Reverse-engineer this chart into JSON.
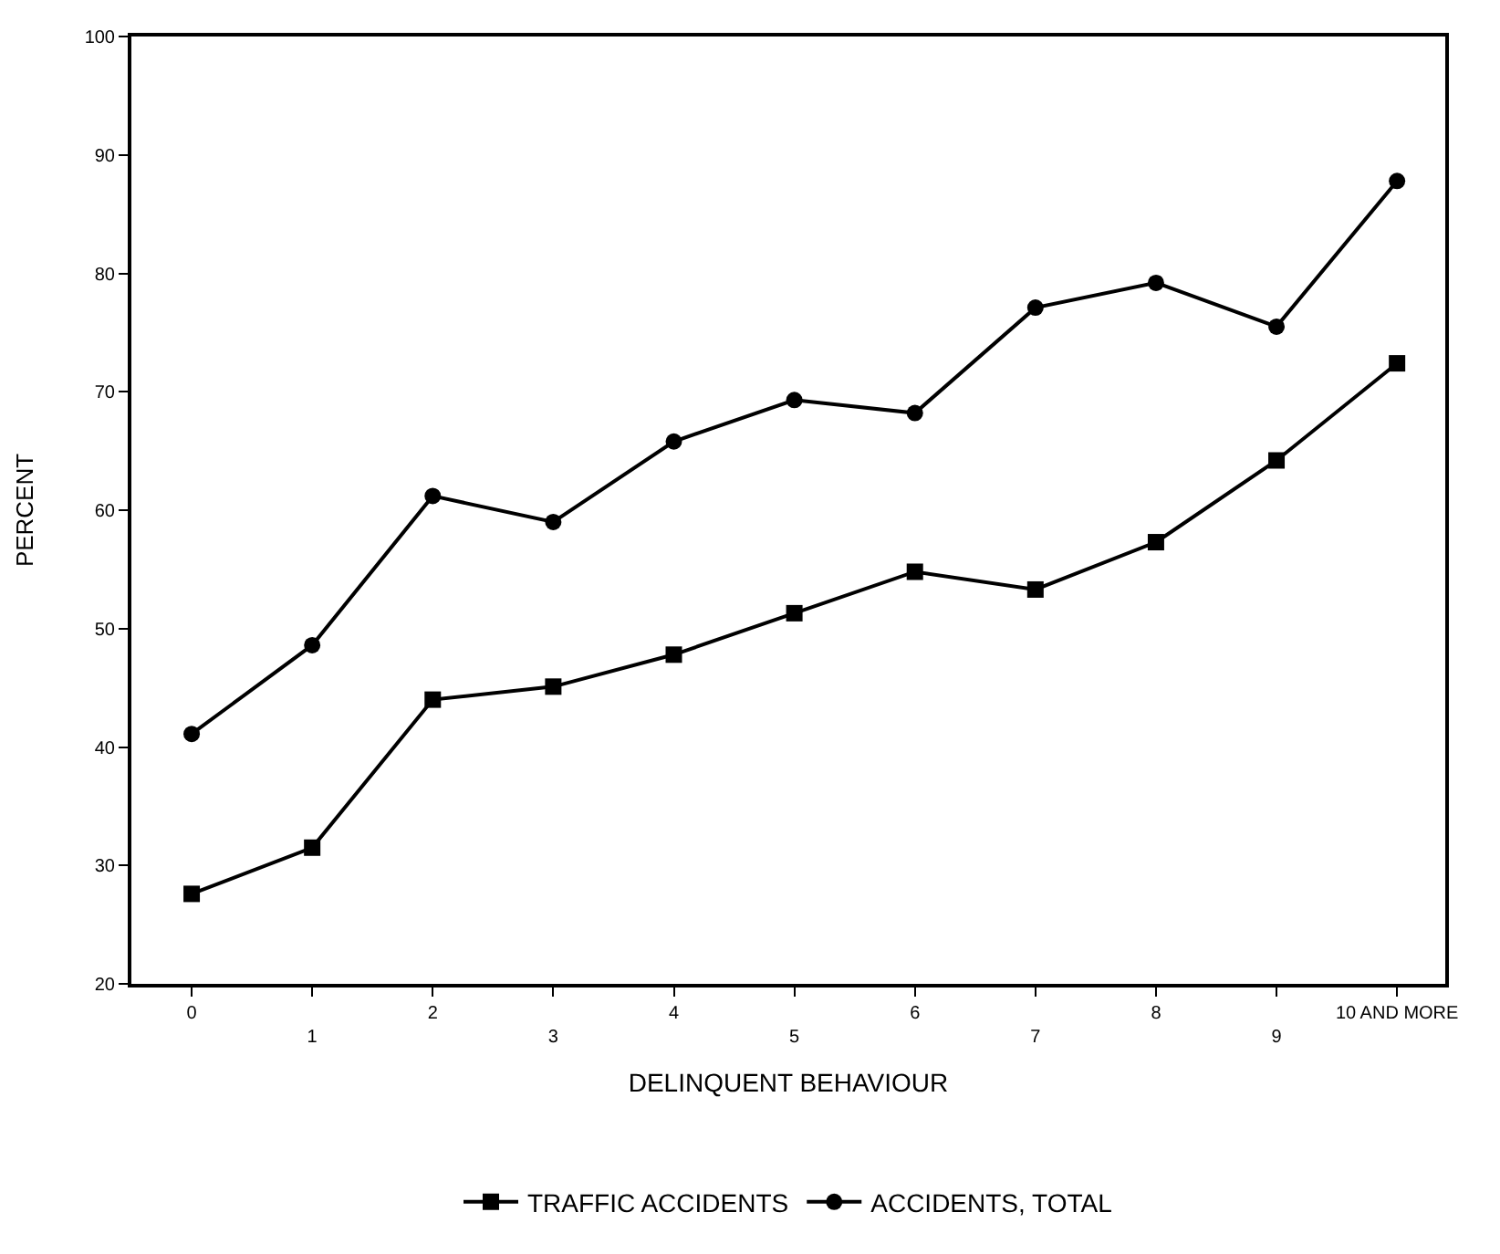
{
  "chart_data": {
    "type": "line",
    "xlabel": "DELINQUENT BEHAVIOUR",
    "ylabel": "PERCENT",
    "categories": [
      "0",
      "1",
      "2",
      "3",
      "4",
      "5",
      "6",
      "7",
      "8",
      "9",
      "10 AND MORE"
    ],
    "series": [
      {
        "name": "TRAFFIC ACCIDENTS",
        "color": "#000000",
        "marker": "square",
        "values": [
          27.6,
          31.5,
          44,
          45.1,
          47.8,
          51.3,
          54.8,
          53.3,
          57.3,
          64.2,
          72.4
        ]
      },
      {
        "name": "ACCIDENTS, TOTAL",
        "color": "#000000",
        "marker": "circle",
        "values": [
          41.1,
          48.6,
          61.2,
          59,
          65.8,
          69.3,
          68.2,
          77.1,
          79.2,
          75.5,
          87.8
        ]
      }
    ],
    "ylim": [
      20,
      100
    ],
    "yticks": [
      20,
      30,
      40,
      50,
      60,
      70,
      80,
      90,
      100
    ],
    "legend": "bottom",
    "line_style": "solid"
  }
}
